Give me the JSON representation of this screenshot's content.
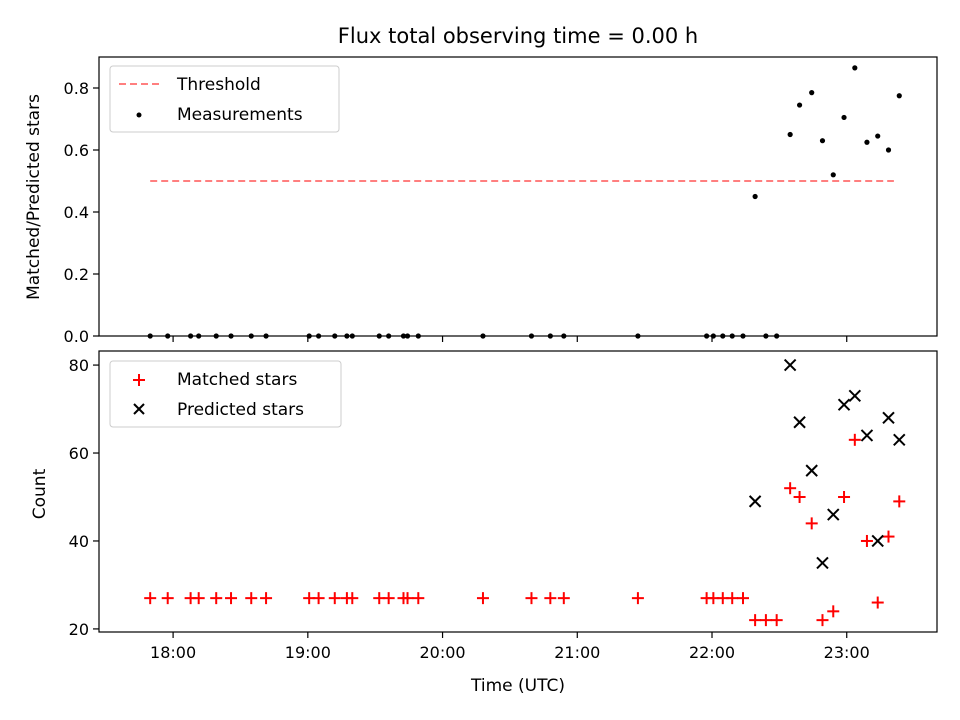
{
  "chart_data": [
    {
      "type": "scatter",
      "title": "Flux total observing time = 0.00 h",
      "xlabel": "",
      "ylabel": "Matched/Predicted stars",
      "ylim": [
        0,
        0.9
      ],
      "yticks": [
        0.0,
        0.2,
        0.4,
        0.6,
        0.8
      ],
      "ytick_labels": [
        "0.0",
        "0.2",
        "0.4",
        "0.6",
        "0.8"
      ],
      "legend_position": "top-left",
      "series": [
        {
          "name": "Threshold",
          "kind": "line",
          "color": "#ff7f7f",
          "x": [
            17.83,
            23.35
          ],
          "y": [
            0.5,
            0.5
          ]
        },
        {
          "name": "Measurements",
          "kind": "scatter",
          "color": "#000000",
          "x": [
            17.83,
            17.96,
            18.13,
            18.19,
            18.32,
            18.43,
            18.58,
            18.69,
            19.01,
            19.08,
            19.2,
            19.29,
            19.33,
            19.53,
            19.6,
            19.71,
            19.74,
            19.82,
            20.3,
            20.66,
            20.8,
            20.9,
            21.45,
            21.96,
            22.01,
            22.08,
            22.15,
            22.23,
            22.32,
            22.4,
            22.48,
            22.58,
            22.65,
            22.74,
            22.82,
            22.9,
            22.98,
            23.06,
            23.15,
            23.23,
            23.31,
            23.39
          ],
          "y": [
            0,
            0,
            0,
            0,
            0,
            0,
            0,
            0,
            0,
            0,
            0,
            0,
            0,
            0,
            0,
            0,
            0,
            0,
            0,
            0,
            0,
            0,
            0,
            0,
            0,
            0,
            0,
            0,
            0.45,
            0,
            0,
            0.65,
            0.745,
            0.785,
            0.63,
            0.52,
            0.705,
            0.865,
            0.625,
            0.645,
            0.6,
            0.775
          ]
        }
      ]
    },
    {
      "type": "scatter",
      "title": "",
      "xlabel": "Time (UTC)",
      "ylabel": "Count",
      "ylim": [
        19.3,
        83.2
      ],
      "yticks": [
        20,
        40,
        60,
        80
      ],
      "ytick_labels": [
        "20",
        "40",
        "60",
        "80"
      ],
      "xlim": [
        17.45,
        23.67
      ],
      "xticks": [
        18,
        19,
        20,
        21,
        22,
        23
      ],
      "xtick_labels": [
        "18:00",
        "19:00",
        "20:00",
        "21:00",
        "22:00",
        "23:00"
      ],
      "legend_position": "top-left",
      "series": [
        {
          "name": "Matched stars",
          "marker": "plus",
          "color": "#ff0000",
          "x": [
            17.83,
            17.96,
            18.13,
            18.19,
            18.32,
            18.43,
            18.58,
            18.69,
            19.01,
            19.08,
            19.2,
            19.29,
            19.33,
            19.53,
            19.6,
            19.71,
            19.74,
            19.82,
            20.3,
            20.66,
            20.8,
            20.9,
            21.45,
            21.96,
            22.01,
            22.08,
            22.15,
            22.23,
            22.32,
            22.4,
            22.48,
            22.58,
            22.65,
            22.74,
            22.82,
            22.9,
            22.98,
            23.06,
            23.15,
            23.23,
            23.31,
            23.39
          ],
          "y": [
            27,
            27,
            27,
            27,
            27,
            27,
            27,
            27,
            27,
            27,
            27,
            27,
            27,
            27,
            27,
            27,
            27,
            27,
            27,
            27,
            27,
            27,
            27,
            27,
            27,
            27,
            27,
            27,
            22,
            22,
            22,
            52,
            50,
            44,
            22,
            24,
            50,
            63,
            40,
            26,
            41,
            49
          ]
        },
        {
          "name": "Predicted stars",
          "marker": "x",
          "color": "#000000",
          "x": [
            22.32,
            22.58,
            22.65,
            22.74,
            22.82,
            22.9,
            22.98,
            23.06,
            23.15,
            23.23,
            23.31,
            23.39
          ],
          "y": [
            49,
            80,
            67,
            56,
            35,
            46,
            71,
            73,
            64,
            40,
            68,
            63
          ]
        }
      ]
    }
  ]
}
